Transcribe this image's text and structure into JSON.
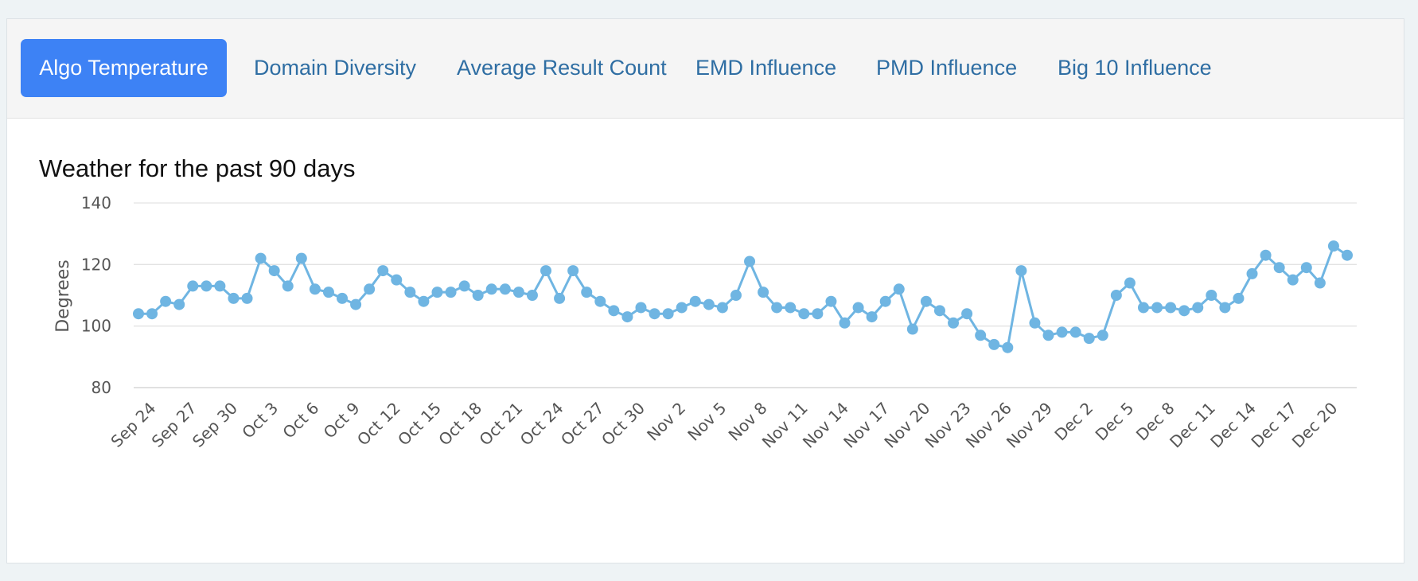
{
  "tabs": [
    {
      "label": "Algo Temperature",
      "active": true
    },
    {
      "label": "Domain Diversity",
      "active": false
    },
    {
      "label": "Average Result Count",
      "active": false
    },
    {
      "label": "EMD Influence",
      "active": false
    },
    {
      "label": "PMD Influence",
      "active": false
    },
    {
      "label": "Big 10 Influence",
      "active": false
    }
  ],
  "colors": {
    "active_tab": "#3d82f5",
    "tab_text": "#2f6ea3",
    "series": "#6fb5e2",
    "grid": "#e3e3e3"
  },
  "chart_data": {
    "type": "line",
    "title": "Weather for the past 90 days",
    "xlabel": "",
    "ylabel": "Degrees",
    "ylim": [
      80,
      140
    ],
    "yticks": [
      80,
      100,
      120,
      140
    ],
    "grid": true,
    "markers": true,
    "tick_labels": [
      "Sep 24",
      "Sep 27",
      "Sep 30",
      "Oct 3",
      "Oct 6",
      "Oct 9",
      "Oct 12",
      "Oct 15",
      "Oct 18",
      "Oct 21",
      "Oct 24",
      "Oct 27",
      "Oct 30",
      "Nov 2",
      "Nov 5",
      "Nov 8",
      "Nov 11",
      "Nov 14",
      "Nov 17",
      "Nov 20",
      "Nov 23",
      "Nov 26",
      "Nov 29",
      "Dec 2",
      "Dec 5",
      "Dec 8",
      "Dec 11",
      "Dec 14",
      "Dec 17",
      "Dec 20"
    ],
    "x": [
      "Sep 23",
      "Sep 24",
      "Sep 25",
      "Sep 26",
      "Sep 27",
      "Sep 28",
      "Sep 29",
      "Sep 30",
      "Oct 1",
      "Oct 2",
      "Oct 3",
      "Oct 4",
      "Oct 5",
      "Oct 6",
      "Oct 7",
      "Oct 8",
      "Oct 9",
      "Oct 10",
      "Oct 11",
      "Oct 12",
      "Oct 13",
      "Oct 14",
      "Oct 15",
      "Oct 16",
      "Oct 17",
      "Oct 18",
      "Oct 19",
      "Oct 20",
      "Oct 21",
      "Oct 22",
      "Oct 23",
      "Oct 24",
      "Oct 25",
      "Oct 26",
      "Oct 27",
      "Oct 28",
      "Oct 29",
      "Oct 30",
      "Oct 31",
      "Nov 1",
      "Nov 2",
      "Nov 3",
      "Nov 4",
      "Nov 5",
      "Nov 6",
      "Nov 7",
      "Nov 8",
      "Nov 9",
      "Nov 10",
      "Nov 11",
      "Nov 12",
      "Nov 13",
      "Nov 14",
      "Nov 15",
      "Nov 16",
      "Nov 17",
      "Nov 18",
      "Nov 19",
      "Nov 20",
      "Nov 21",
      "Nov 22",
      "Nov 23",
      "Nov 24",
      "Nov 25",
      "Nov 26",
      "Nov 27",
      "Nov 28",
      "Nov 29",
      "Nov 30",
      "Dec 1",
      "Dec 2",
      "Dec 3",
      "Dec 4",
      "Dec 5",
      "Dec 6",
      "Dec 7",
      "Dec 8",
      "Dec 9",
      "Dec 10",
      "Dec 11",
      "Dec 12",
      "Dec 13",
      "Dec 14",
      "Dec 15",
      "Dec 16",
      "Dec 17",
      "Dec 18",
      "Dec 19",
      "Dec 20",
      "Dec 21"
    ],
    "values": [
      104,
      104,
      108,
      107,
      113,
      113,
      113,
      109,
      109,
      122,
      118,
      113,
      122,
      112,
      111,
      109,
      107,
      112,
      118,
      115,
      111,
      108,
      111,
      111,
      113,
      110,
      112,
      112,
      111,
      110,
      118,
      109,
      118,
      111,
      108,
      105,
      103,
      106,
      104,
      104,
      106,
      108,
      107,
      106,
      110,
      121,
      111,
      106,
      106,
      104,
      104,
      108,
      101,
      106,
      103,
      108,
      112,
      99,
      108,
      105,
      101,
      104,
      97,
      94,
      93,
      118,
      101,
      97,
      98,
      98,
      96,
      97,
      110,
      114,
      106,
      106,
      106,
      105,
      106,
      110,
      106,
      109,
      117,
      123,
      119,
      115,
      119,
      114,
      126,
      123
    ]
  }
}
